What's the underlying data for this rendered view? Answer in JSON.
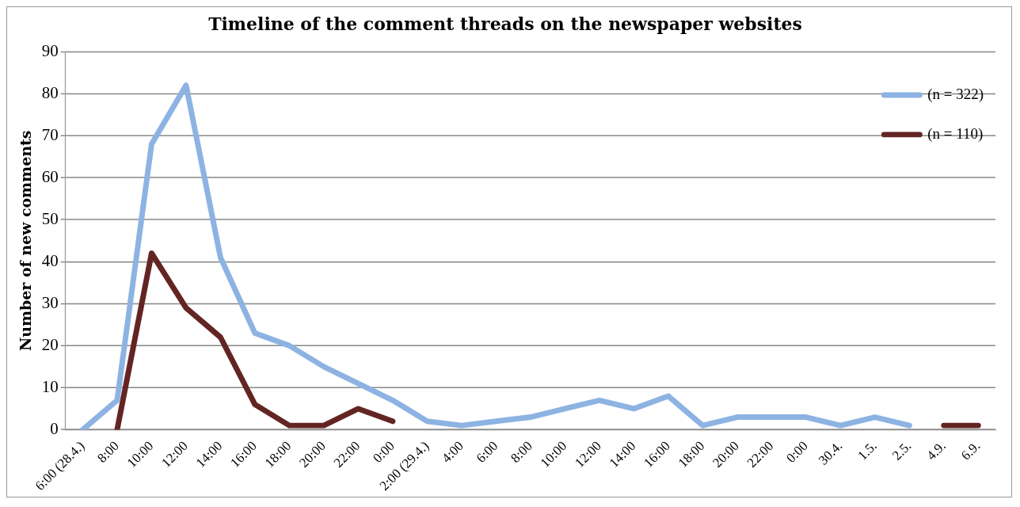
{
  "chart_data": {
    "type": "line",
    "title": "Timeline of the comment threads on the newspaper websites",
    "ylabel": "Number of new comments",
    "categories": [
      "6:00 (28.4.)",
      "8:00",
      "10:00",
      "12:00",
      "14:00",
      "16:00",
      "18:00",
      "20:00",
      "22:00",
      "0:00",
      "2:00 (29.4.)",
      "4:00",
      "6:00",
      "8:00",
      "10:00",
      "12:00",
      "14:00",
      "16:00",
      "18:00",
      "20:00",
      "22:00",
      "0:00",
      "30.4.",
      "1.5.",
      "2.5.",
      "4.9.",
      "6.9."
    ],
    "series": [
      {
        "name": "(n = 322)",
        "color": "#8db3e2",
        "values": [
          0,
          7,
          68,
          82,
          41,
          23,
          20,
          15,
          11,
          7,
          2,
          1,
          2,
          3,
          5,
          7,
          5,
          8,
          1,
          3,
          3,
          3,
          1,
          3,
          1,
          null,
          null
        ]
      },
      {
        "name": "(n = 110)",
        "color": "#632523",
        "values": [
          null,
          0,
          42,
          29,
          22,
          6,
          1,
          1,
          5,
          2,
          null,
          null,
          null,
          null,
          null,
          null,
          null,
          null,
          null,
          null,
          null,
          null,
          null,
          null,
          null,
          1,
          1
        ]
      }
    ],
    "ylim": [
      0,
      90
    ],
    "yticks": [
      0,
      10,
      20,
      30,
      40,
      50,
      60,
      70,
      80,
      90
    ],
    "grid": "y",
    "legend": "top right",
    "marker": "none",
    "line_style": "solid"
  }
}
